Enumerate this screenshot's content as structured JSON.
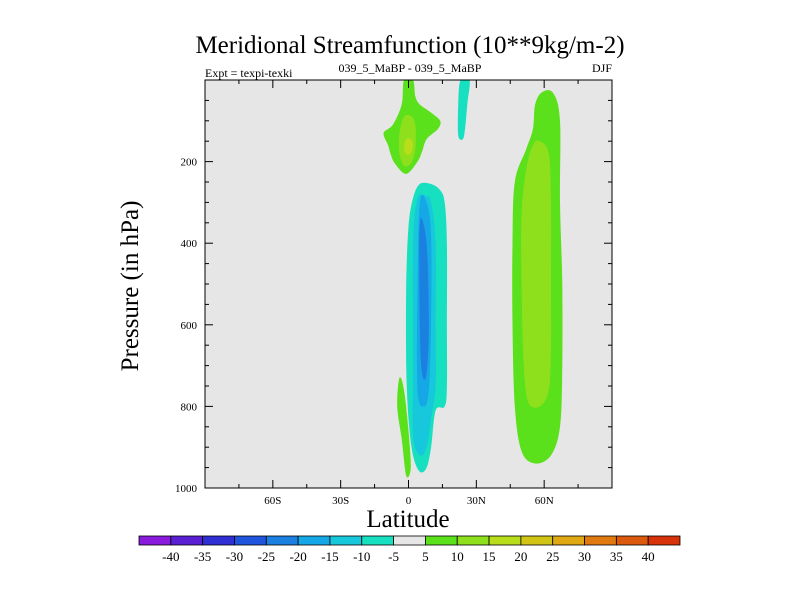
{
  "chart_data": {
    "type": "heatmap",
    "subtype": "filled-contour",
    "title": "Meridional Streamfunction (10**9kg/m-2)",
    "subtitle_left": "Expt = texpi-texki",
    "subtitle_center": "039_5_MaBP - 039_5_MaBP",
    "subtitle_right": "DJF",
    "xlabel": "Latitude",
    "ylabel": "Pressure (in hPa)",
    "xlim": [
      -90,
      90
    ],
    "ylim": [
      1000,
      0
    ],
    "x_ticks": [
      {
        "value": -60,
        "label": "60S"
      },
      {
        "value": -30,
        "label": "30S"
      },
      {
        "value": 0,
        "label": "0"
      },
      {
        "value": 30,
        "label": "30N"
      },
      {
        "value": 60,
        "label": "60N"
      }
    ],
    "y_ticks": [
      {
        "value": 200,
        "label": "200"
      },
      {
        "value": 400,
        "label": "400"
      },
      {
        "value": 600,
        "label": "600"
      },
      {
        "value": 800,
        "label": "800"
      },
      {
        "value": 1000,
        "label": "1000"
      }
    ],
    "background_color": "#e6e6e6",
    "colorbar": {
      "labels": [
        "-40",
        "-35",
        "-30",
        "-25",
        "-20",
        "-15",
        "-10",
        "-5",
        "5",
        "10",
        "15",
        "20",
        "25",
        "30",
        "35",
        "40"
      ],
      "colors": [
        "#8a1bdc",
        "#5a1fd2",
        "#2f2fd4",
        "#1f55dc",
        "#1b80e0",
        "#16a8e6",
        "#17c8dc",
        "#17e0c0",
        "#e6e6e6",
        "#5be01c",
        "#8ee01c",
        "#b8dd1a",
        "#d2c414",
        "#e0a812",
        "#e07a10",
        "#dc5a0e",
        "#d8320a"
      ]
    },
    "regions": [
      {
        "name": "polar-upper-green",
        "level": "5 to 10",
        "color": "#5be01c",
        "points": [
          [
            -2,
            0
          ],
          [
            2,
            0
          ],
          [
            3,
            40
          ],
          [
            5,
            60
          ],
          [
            10,
            80
          ],
          [
            14,
            100
          ],
          [
            13,
            120
          ],
          [
            8,
            145
          ],
          [
            6,
            175
          ],
          [
            4,
            200
          ],
          [
            -1,
            230
          ],
          [
            -6,
            205
          ],
          [
            -8,
            180
          ],
          [
            -9,
            160
          ],
          [
            -11,
            130
          ],
          [
            -7,
            110
          ],
          [
            -3,
            60
          ]
        ]
      },
      {
        "name": "polar-upper-yellowgreen",
        "level": "10 to 15",
        "color": "#8ee01c",
        "points": [
          [
            -2,
            90
          ],
          [
            1,
            88
          ],
          [
            3,
            110
          ],
          [
            3,
            170
          ],
          [
            1,
            205
          ],
          [
            -2,
            210
          ],
          [
            -4,
            180
          ],
          [
            -4,
            130
          ]
        ]
      },
      {
        "name": "polar-upper-yellow",
        "level": "15 to 20",
        "color": "#b8dd1a",
        "points": [
          [
            -1,
            145
          ],
          [
            1,
            145
          ],
          [
            2,
            160
          ],
          [
            1,
            180
          ],
          [
            -1,
            182
          ],
          [
            -2,
            165
          ]
        ]
      },
      {
        "name": "upper-cyan-patch",
        "level": "-5 to -10",
        "color": "#17e0c0",
        "points": [
          [
            23,
            0
          ],
          [
            27,
            0
          ],
          [
            26,
            60
          ],
          [
            25,
            120
          ],
          [
            24,
            145
          ],
          [
            22,
            135
          ],
          [
            22,
            60
          ]
        ]
      },
      {
        "name": "southern-cell-cyan",
        "level": "-5 to -10",
        "color": "#17e0c0",
        "points": [
          [
            5,
            255
          ],
          [
            10,
            255
          ],
          [
            14,
            270
          ],
          [
            16,
            300
          ],
          [
            17,
            400
          ],
          [
            17,
            600
          ],
          [
            17,
            750
          ],
          [
            16,
            800
          ],
          [
            12,
            810
          ],
          [
            10,
            900
          ],
          [
            8,
            950
          ],
          [
            5,
            960
          ],
          [
            2,
            920
          ],
          [
            0,
            830
          ],
          [
            -1,
            700
          ],
          [
            -1,
            500
          ],
          [
            0,
            360
          ],
          [
            2,
            290
          ]
        ]
      },
      {
        "name": "southern-cell-lightblue",
        "level": "-10 to -15",
        "color": "#17c8dc",
        "points": [
          [
            4,
            290
          ],
          [
            8,
            285
          ],
          [
            10,
            300
          ],
          [
            12,
            400
          ],
          [
            12,
            600
          ],
          [
            12,
            750
          ],
          [
            10,
            830
          ],
          [
            8,
            900
          ],
          [
            5,
            920
          ],
          [
            2,
            870
          ],
          [
            2,
            700
          ],
          [
            2,
            400
          ]
        ]
      },
      {
        "name": "southern-cell-blue",
        "level": "-15 to -20",
        "color": "#16a8e6",
        "points": [
          [
            5,
            300
          ],
          [
            8,
            300
          ],
          [
            10,
            380
          ],
          [
            10,
            600
          ],
          [
            9,
            760
          ],
          [
            7,
            800
          ],
          [
            4,
            760
          ],
          [
            4,
            500
          ]
        ]
      },
      {
        "name": "southern-cell-core",
        "level": "-20 to -25",
        "color": "#1b80e0",
        "points": [
          [
            5,
            350
          ],
          [
            8,
            400
          ],
          [
            9,
            600
          ],
          [
            8,
            720
          ],
          [
            6,
            720
          ],
          [
            5,
            600
          ]
        ]
      },
      {
        "name": "surface-green-strip",
        "level": "5 to 10",
        "color": "#5be01c",
        "points": [
          [
            -4,
            730
          ],
          [
            -2,
            760
          ],
          [
            0,
            860
          ],
          [
            1,
            950
          ],
          [
            -1,
            970
          ],
          [
            -3,
            880
          ],
          [
            -5,
            800
          ]
        ]
      },
      {
        "name": "northern-cell-green",
        "level": "5 to 10",
        "color": "#5be01c",
        "points": [
          [
            59,
            30
          ],
          [
            64,
            32
          ],
          [
            67,
            100
          ],
          [
            67,
            300
          ],
          [
            68,
            500
          ],
          [
            68,
            700
          ],
          [
            67,
            850
          ],
          [
            63,
            920
          ],
          [
            56,
            940
          ],
          [
            50,
            910
          ],
          [
            47,
            800
          ],
          [
            46,
            600
          ],
          [
            46,
            400
          ],
          [
            47,
            250
          ],
          [
            52,
            170
          ],
          [
            55,
            120
          ],
          [
            56,
            60
          ]
        ]
      },
      {
        "name": "northern-cell-yellowgreen",
        "level": "10 to 15",
        "color": "#8ee01c",
        "points": [
          [
            58,
            150
          ],
          [
            62,
            180
          ],
          [
            63,
            300
          ],
          [
            63,
            500
          ],
          [
            63,
            650
          ],
          [
            62,
            760
          ],
          [
            58,
            800
          ],
          [
            53,
            790
          ],
          [
            51,
            700
          ],
          [
            50,
            500
          ],
          [
            50,
            330
          ],
          [
            52,
            220
          ],
          [
            55,
            160
          ]
        ]
      }
    ]
  }
}
